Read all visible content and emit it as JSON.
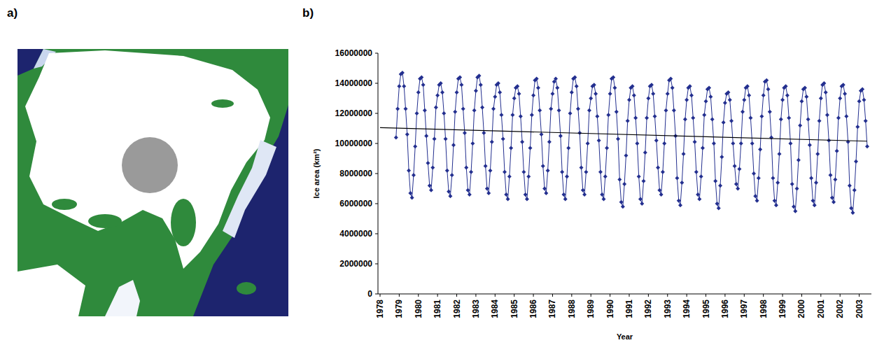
{
  "panel_labels": [
    "a)",
    "b)"
  ],
  "chart_data": {
    "type": "line",
    "x_label": "Year",
    "y_label": "Ice area (km²)",
    "categories": [
      "1978",
      null,
      null,
      null,
      null,
      null,
      null,
      null,
      null,
      null,
      null,
      null,
      "1979",
      null,
      null,
      null,
      null,
      null,
      null,
      null,
      null,
      null,
      null,
      null,
      "1980",
      null,
      null,
      null,
      null,
      null,
      null,
      null,
      null,
      null,
      null,
      null,
      "1981",
      null,
      null,
      null,
      null,
      null,
      null,
      null,
      null,
      null,
      null,
      null,
      "1982",
      null,
      null,
      null,
      null,
      null,
      null,
      null,
      null,
      null,
      null,
      null,
      "1983",
      null,
      null,
      null,
      null,
      null,
      null,
      null,
      null,
      null,
      null,
      null,
      "1984",
      null,
      null,
      null,
      null,
      null,
      null,
      null,
      null,
      null,
      null,
      null,
      "1985",
      null,
      null,
      null,
      null,
      null,
      null,
      null,
      null,
      null,
      null,
      null,
      "1986",
      null,
      null,
      null,
      null,
      null,
      null,
      null,
      null,
      null,
      null,
      null,
      "1987",
      null,
      null,
      null,
      null,
      null,
      null,
      null,
      null,
      null,
      null,
      null,
      "1988",
      null,
      null,
      null,
      null,
      null,
      null,
      null,
      null,
      null,
      null,
      null,
      "1989",
      null,
      null,
      null,
      null,
      null,
      null,
      null,
      null,
      null,
      null,
      null,
      "1990",
      null,
      null,
      null,
      null,
      null,
      null,
      null,
      null,
      null,
      null,
      null,
      "1991",
      null,
      null,
      null,
      null,
      null,
      null,
      null,
      null,
      null,
      null,
      null,
      "1992",
      null,
      null,
      null,
      null,
      null,
      null,
      null,
      null,
      null,
      null,
      null,
      "1993",
      null,
      null,
      null,
      null,
      null,
      null,
      null,
      null,
      null,
      null,
      null,
      "1994",
      null,
      null,
      null,
      null,
      null,
      null,
      null,
      null,
      null,
      null,
      null,
      "1995",
      null,
      null,
      null,
      null,
      null,
      null,
      null,
      null,
      null,
      null,
      null,
      "1996",
      null,
      null,
      null,
      null,
      null,
      null,
      null,
      null,
      null,
      null,
      null,
      "1997",
      null,
      null,
      null,
      null,
      null,
      null,
      null,
      null,
      null,
      null,
      null,
      "1998",
      null,
      null,
      null,
      null,
      null,
      null,
      null,
      null,
      null,
      null,
      null,
      "1999",
      null,
      null,
      null,
      null,
      null,
      null,
      null,
      null,
      null,
      null,
      null,
      "2000",
      null,
      null,
      null,
      null,
      null,
      null,
      null,
      null,
      null,
      null,
      null,
      "2001",
      null,
      null,
      null,
      null,
      null,
      null,
      null,
      null,
      null,
      null,
      null,
      "2002",
      null,
      null,
      null,
      null,
      null,
      null,
      null,
      null,
      null,
      null,
      null,
      "2003",
      null,
      null,
      null,
      null,
      null
    ],
    "series": [
      {
        "color": "#232f8f",
        "marker": "diamond",
        "values": [
          null,
          null,
          null,
          null,
          null,
          null,
          null,
          null,
          null,
          null,
          10400000,
          12300000,
          13800000,
          14600000,
          14700000,
          13800000,
          12300000,
          10600000,
          8200000,
          6700000,
          6400000,
          7900000,
          9800000,
          12000000,
          13400000,
          14300000,
          14400000,
          13900000,
          12200000,
          10500000,
          8700000,
          7200000,
          6900000,
          8400000,
          10300000,
          12400000,
          13200000,
          13900000,
          14000000,
          13400000,
          12000000,
          10300000,
          8200000,
          6800000,
          6500000,
          7900000,
          9900000,
          12100000,
          13400000,
          14300000,
          14400000,
          13900000,
          12300000,
          10700000,
          8400000,
          6900000,
          6600000,
          8100000,
          10000000,
          12200000,
          13500000,
          14400000,
          14500000,
          13900000,
          12400000,
          10700000,
          8500000,
          7000000,
          6700000,
          8200000,
          10100000,
          12300000,
          13100000,
          13900000,
          14000000,
          13400000,
          11900000,
          10300000,
          8100000,
          6600000,
          6300000,
          7800000,
          9700000,
          11900000,
          13000000,
          13700000,
          13800000,
          13300000,
          11800000,
          10100000,
          8100000,
          6600000,
          6300000,
          7800000,
          9700000,
          11900000,
          13200000,
          14200000,
          14300000,
          13700000,
          12200000,
          10600000,
          8500000,
          7000000,
          6700000,
          8200000,
          10100000,
          12300000,
          13300000,
          14100000,
          14300000,
          13700000,
          12200000,
          10500000,
          8100000,
          6600000,
          6300000,
          7800000,
          9700000,
          12000000,
          13400000,
          14300000,
          14400000,
          13800000,
          12300000,
          10700000,
          8400000,
          6900000,
          6600000,
          8100000,
          10000000,
          12200000,
          13000000,
          13800000,
          13900000,
          13300000,
          11800000,
          10200000,
          8100000,
          6600000,
          6300000,
          7800000,
          9700000,
          11900000,
          13300000,
          14300000,
          14400000,
          13700000,
          12100000,
          10300000,
          7600000,
          6100000,
          5800000,
          7300000,
          9200000,
          11500000,
          12900000,
          13700000,
          13800000,
          13200000,
          11700000,
          10000000,
          7800000,
          6300000,
          6000000,
          7500000,
          9400000,
          11700000,
          13000000,
          13800000,
          13900000,
          13300000,
          11800000,
          10200000,
          8400000,
          6900000,
          6600000,
          8100000,
          10000000,
          12200000,
          13300000,
          14200000,
          14300000,
          13700000,
          12200000,
          10500000,
          7700000,
          6200000,
          5900000,
          7400000,
          9300000,
          11600000,
          12900000,
          13700000,
          13800000,
          13200000,
          11700000,
          10100000,
          8100000,
          6600000,
          6300000,
          7800000,
          9700000,
          11900000,
          12800000,
          13600000,
          13700000,
          13100000,
          11600000,
          10000000,
          7500000,
          6000000,
          5700000,
          7200000,
          9100000,
          11400000,
          12700000,
          13300000,
          13400000,
          12900000,
          11500000,
          10000000,
          8500000,
          7300000,
          7000000,
          8300000,
          10000000,
          12100000,
          12900000,
          13700000,
          13800000,
          13200000,
          11700000,
          10000000,
          8000000,
          6500000,
          6200000,
          7700000,
          9600000,
          11800000,
          13200000,
          14100000,
          14200000,
          13600000,
          12100000,
          10400000,
          7700000,
          6200000,
          5900000,
          7400000,
          9300000,
          11600000,
          12900000,
          13700000,
          13800000,
          13200000,
          11700000,
          10000000,
          7300000,
          5800000,
          5500000,
          7000000,
          8900000,
          11200000,
          12800000,
          13600000,
          13700000,
          13100000,
          11600000,
          9900000,
          7700000,
          6200000,
          5900000,
          7400000,
          9300000,
          11500000,
          13000000,
          13900000,
          14000000,
          13400000,
          11900000,
          10200000,
          7900000,
          6400000,
          6100000,
          7600000,
          9500000,
          11700000,
          13000000,
          13800000,
          13900000,
          13300000,
          11800000,
          10100000,
          7200000,
          5700000,
          5400000,
          6900000,
          8800000,
          11100000,
          12800000,
          13500000,
          13600000,
          12900000,
          11500000,
          9800000
        ]
      }
    ],
    "trend_line": [
      11050000,
      10150000
    ],
    "ylim": [
      0,
      16000000
    ],
    "yticks": [
      0,
      2000000,
      4000000,
      6000000,
      8000000,
      10000000,
      12000000,
      14000000,
      16000000
    ],
    "grid": false
  }
}
